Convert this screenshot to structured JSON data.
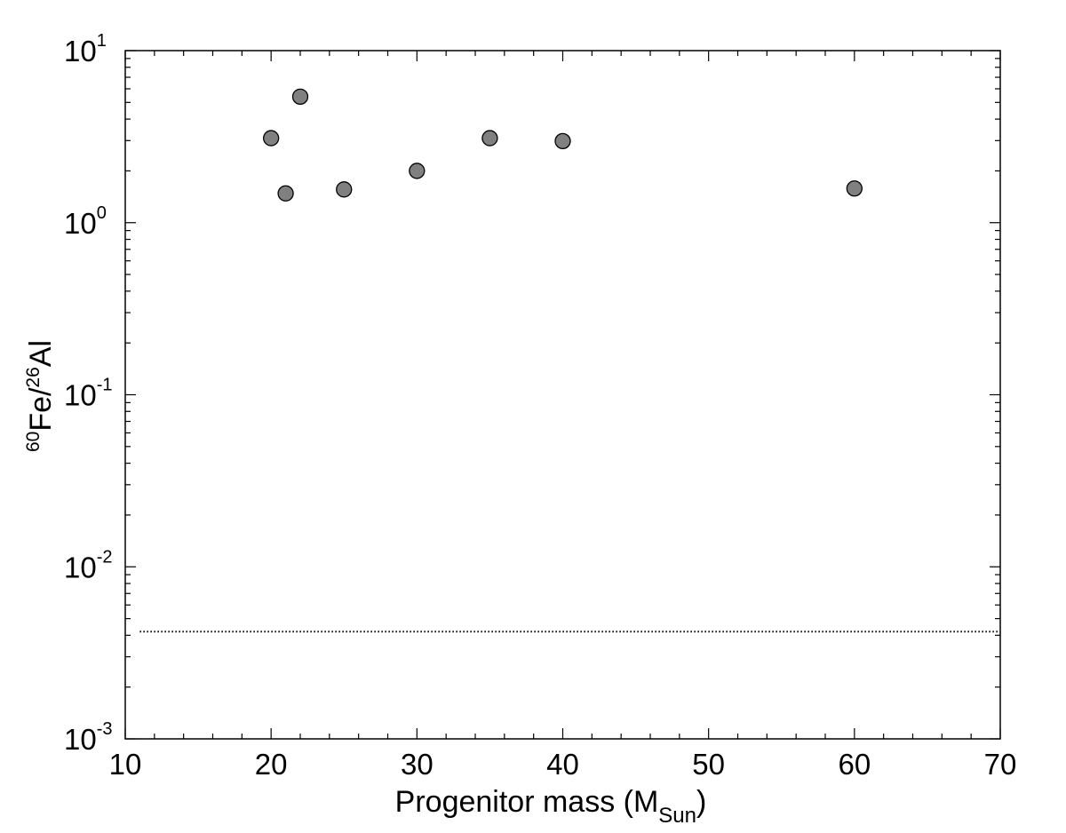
{
  "chart_data": {
    "type": "scatter",
    "xlabel": {
      "main": "Progenitor mass (M",
      "sub": "Sun",
      "close": ")"
    },
    "ylabel": {
      "iso1": "60",
      "el1": "Fe/",
      "iso2": "26",
      "el2": "Al"
    },
    "xlim": [
      10,
      70
    ],
    "ylim": [
      0.001,
      10
    ],
    "yscale": "log",
    "grid": false,
    "x_ticks": [
      10,
      20,
      30,
      40,
      50,
      60,
      70
    ],
    "x_tick_labels": [
      "10",
      "20",
      "30",
      "40",
      "50",
      "60",
      "70"
    ],
    "y_ticks": [
      0.001,
      0.01,
      0.1,
      1,
      10
    ],
    "y_tick_labels": [
      {
        "base": "10",
        "exp": "-3"
      },
      {
        "base": "10",
        "exp": "-2"
      },
      {
        "base": "10",
        "exp": "-1"
      },
      {
        "base": "10",
        "exp": "0"
      },
      {
        "base": "10",
        "exp": "1"
      }
    ],
    "points": [
      {
        "x": 20,
        "y": 3.1
      },
      {
        "x": 21,
        "y": 1.48
      },
      {
        "x": 22,
        "y": 5.4
      },
      {
        "x": 25,
        "y": 1.56
      },
      {
        "x": 30,
        "y": 2.0
      },
      {
        "x": 35,
        "y": 3.1
      },
      {
        "x": 40,
        "y": 2.98
      },
      {
        "x": 60,
        "y": 1.58
      }
    ],
    "reference_line": {
      "y": 0.0042,
      "x_range": [
        11,
        70
      ],
      "style": "dotted"
    },
    "colors": {
      "marker_fill": "#808080",
      "marker_edge": "#000000",
      "axis": "#000000"
    }
  }
}
